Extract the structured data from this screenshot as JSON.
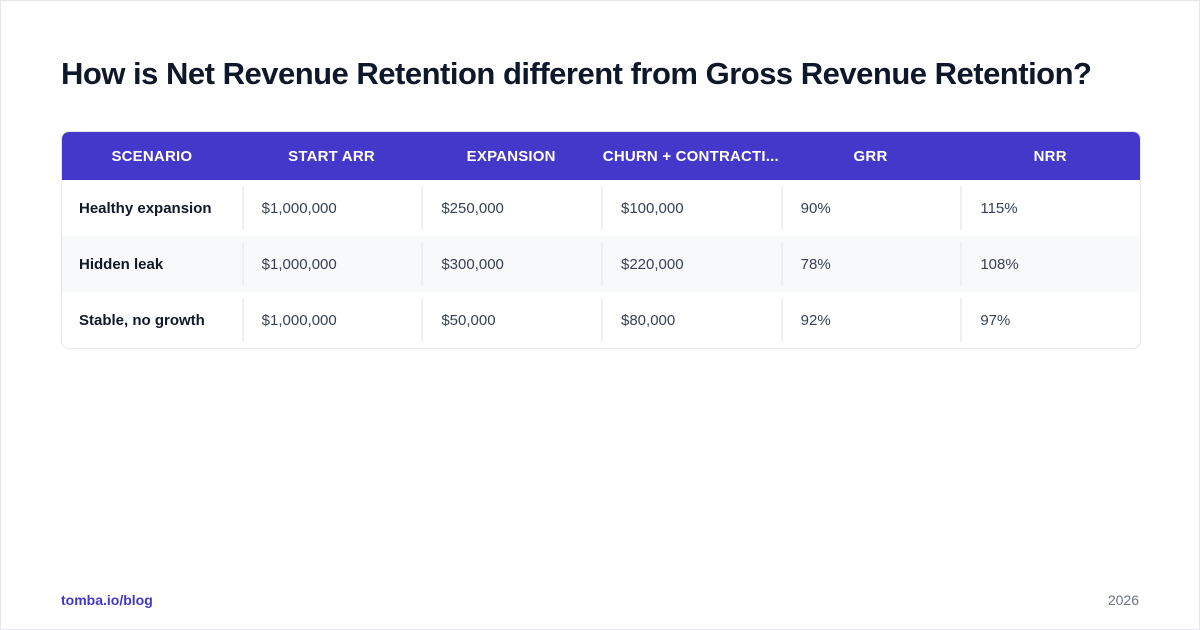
{
  "title": "How is Net Revenue Retention different from Gross Revenue Retention?",
  "table": {
    "headers": [
      "SCENARIO",
      "START ARR",
      "EXPANSION",
      "CHURN + CONTRACTI...",
      "GRR",
      "NRR"
    ],
    "rows": [
      [
        "Healthy expansion",
        "$1,000,000",
        "$250,000",
        "$100,000",
        "90%",
        "115%"
      ],
      [
        "Hidden leak",
        "$1,000,000",
        "$300,000",
        "$220,000",
        "78%",
        "108%"
      ],
      [
        "Stable, no growth",
        "$1,000,000",
        "$50,000",
        "$80,000",
        "92%",
        "97%"
      ]
    ]
  },
  "footer": {
    "source": "tomba.io/blog",
    "year": "2026"
  },
  "colors": {
    "accent": "#4338ca",
    "row_alt": "#f8f9fb"
  }
}
